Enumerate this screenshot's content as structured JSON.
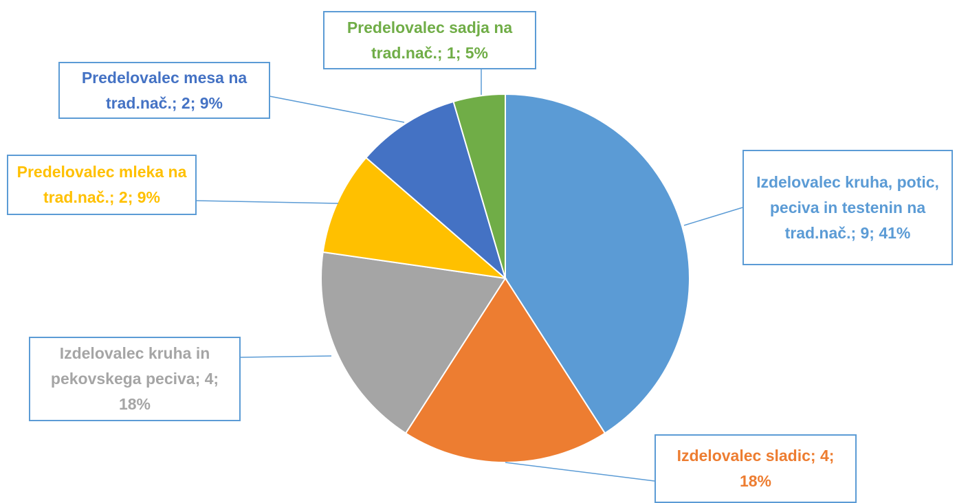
{
  "chart_data": {
    "type": "pie",
    "categories": [
      "Izdelovalec kruha, potic, peciva in testenin na trad.nač.",
      "Izdelovalec sladic",
      "Izdelovalec kruha in pekovskega peciva",
      "Predelovalec mleka na trad.nač.",
      "Predelovalec mesa na trad.nač.",
      "Predelovalec sadja na trad.nač."
    ],
    "values": [
      9,
      4,
      4,
      2,
      2,
      1
    ],
    "labels": [
      "Izdelovalec kruha, potic, peciva in testenin na trad.nač.; 9; 41%",
      "Izdelovalec sladic; 4; 18%",
      "Izdelovalec kruha in pekovskega peciva; 4; 18%",
      "Predelovalec mleka na trad.nač.; 2; 9%",
      "Predelovalec mesa na trad.nač.; 2; 9%",
      "Predelovalec sadja na trad.nač.; 1; 5%"
    ],
    "colors": [
      "#5b9bd5",
      "#ed7d31",
      "#a5a5a5",
      "#ffc000",
      "#4472c4",
      "#70ad47"
    ]
  }
}
